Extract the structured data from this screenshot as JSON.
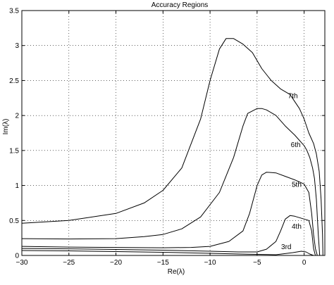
{
  "chart_data": {
    "type": "line",
    "title": "Accuracy Regions",
    "xlabel": "Re(λ)",
    "ylabel": "Im(λ)",
    "xlim": [
      -30,
      2.2
    ],
    "ylim": [
      0,
      3.5
    ],
    "grid": true,
    "xticks": [
      -30,
      -25,
      -20,
      -15,
      -10,
      -5,
      0
    ],
    "xtick_labels": [
      "−30",
      "−25",
      "−20",
      "−15",
      "−10",
      "−5",
      "0"
    ],
    "yticks": [
      0,
      0.5,
      1,
      1.5,
      2,
      2.5,
      3,
      3.5
    ],
    "ytick_labels": [
      "0",
      "0.5",
      "1",
      "1.5",
      "2",
      "2.5",
      "3",
      "3.5"
    ],
    "series": [
      {
        "name": "3rd",
        "label_at": [
          -1.9,
          0.09
        ],
        "x": [
          -30,
          -25,
          -20,
          -15,
          -10,
          -6,
          -3,
          -1.2,
          -0.3,
          0.2,
          0.6,
          1.0
        ],
        "y": [
          0.07,
          0.065,
          0.055,
          0.045,
          0.03,
          0.018,
          0.01,
          0.04,
          0.06,
          0.05,
          0.02,
          0
        ]
      },
      {
        "name": "4th",
        "label_at": [
          -0.8,
          0.38
        ],
        "x": [
          -30,
          -25,
          -20,
          -15,
          -10,
          -7,
          -5,
          -4,
          -3,
          -2.5,
          -2,
          -1.5,
          -1,
          0,
          0.5,
          0.8,
          1.0,
          1.2
        ],
        "y": [
          0.1,
          0.095,
          0.085,
          0.075,
          0.06,
          0.05,
          0.05,
          0.09,
          0.2,
          0.35,
          0.52,
          0.57,
          0.56,
          0.52,
          0.5,
          0.35,
          0.1,
          0
        ]
      },
      {
        "name": "5th",
        "label_at": [
          -0.8,
          0.98
        ],
        "x": [
          -30,
          -25,
          -20,
          -15,
          -12,
          -10,
          -8,
          -6.5,
          -5.8,
          -5,
          -4.5,
          -4,
          -3,
          -2,
          -1,
          0,
          0.5,
          0.8,
          1.0,
          1.2,
          1.4
        ],
        "y": [
          0.13,
          0.12,
          0.115,
          0.11,
          0.115,
          0.13,
          0.2,
          0.35,
          0.6,
          1.0,
          1.15,
          1.19,
          1.18,
          1.13,
          1.08,
          1.02,
          0.9,
          0.6,
          0.3,
          0.1,
          0
        ]
      },
      {
        "name": "6th",
        "label_at": [
          -0.9,
          1.55
        ],
        "x": [
          -30,
          -25,
          -20,
          -17,
          -15,
          -13,
          -11,
          -9,
          -7.5,
          -6.5,
          -6,
          -5,
          -4.5,
          -4,
          -3,
          -2,
          -1,
          0,
          0.3,
          0.6,
          0.9,
          1.1,
          1.3,
          1.5,
          1.65
        ],
        "y": [
          0.24,
          0.235,
          0.24,
          0.27,
          0.3,
          0.38,
          0.55,
          0.9,
          1.4,
          1.85,
          2.03,
          2.1,
          2.1,
          2.08,
          2.0,
          1.85,
          1.72,
          1.57,
          1.5,
          1.4,
          1.25,
          1.1,
          0.8,
          0.3,
          0
        ]
      },
      {
        "name": "7th",
        "label_at": [
          -1.2,
          2.25
        ],
        "x": [
          -30,
          -25,
          -20,
          -17,
          -15,
          -13,
          -11,
          -10,
          -9,
          -8.3,
          -7.5,
          -6.5,
          -5.5,
          -4.5,
          -3.5,
          -2.5,
          -1.5,
          -0.5,
          0,
          0.5,
          1.0,
          1.3,
          1.6,
          1.8,
          1.95,
          2.0
        ],
        "y": [
          0.46,
          0.5,
          0.6,
          0.75,
          0.93,
          1.25,
          1.95,
          2.5,
          2.95,
          3.1,
          3.1,
          3.02,
          2.9,
          2.67,
          2.5,
          2.38,
          2.3,
          2.1,
          1.95,
          1.75,
          1.6,
          1.45,
          1.2,
          0.8,
          0.3,
          0
        ]
      }
    ]
  }
}
